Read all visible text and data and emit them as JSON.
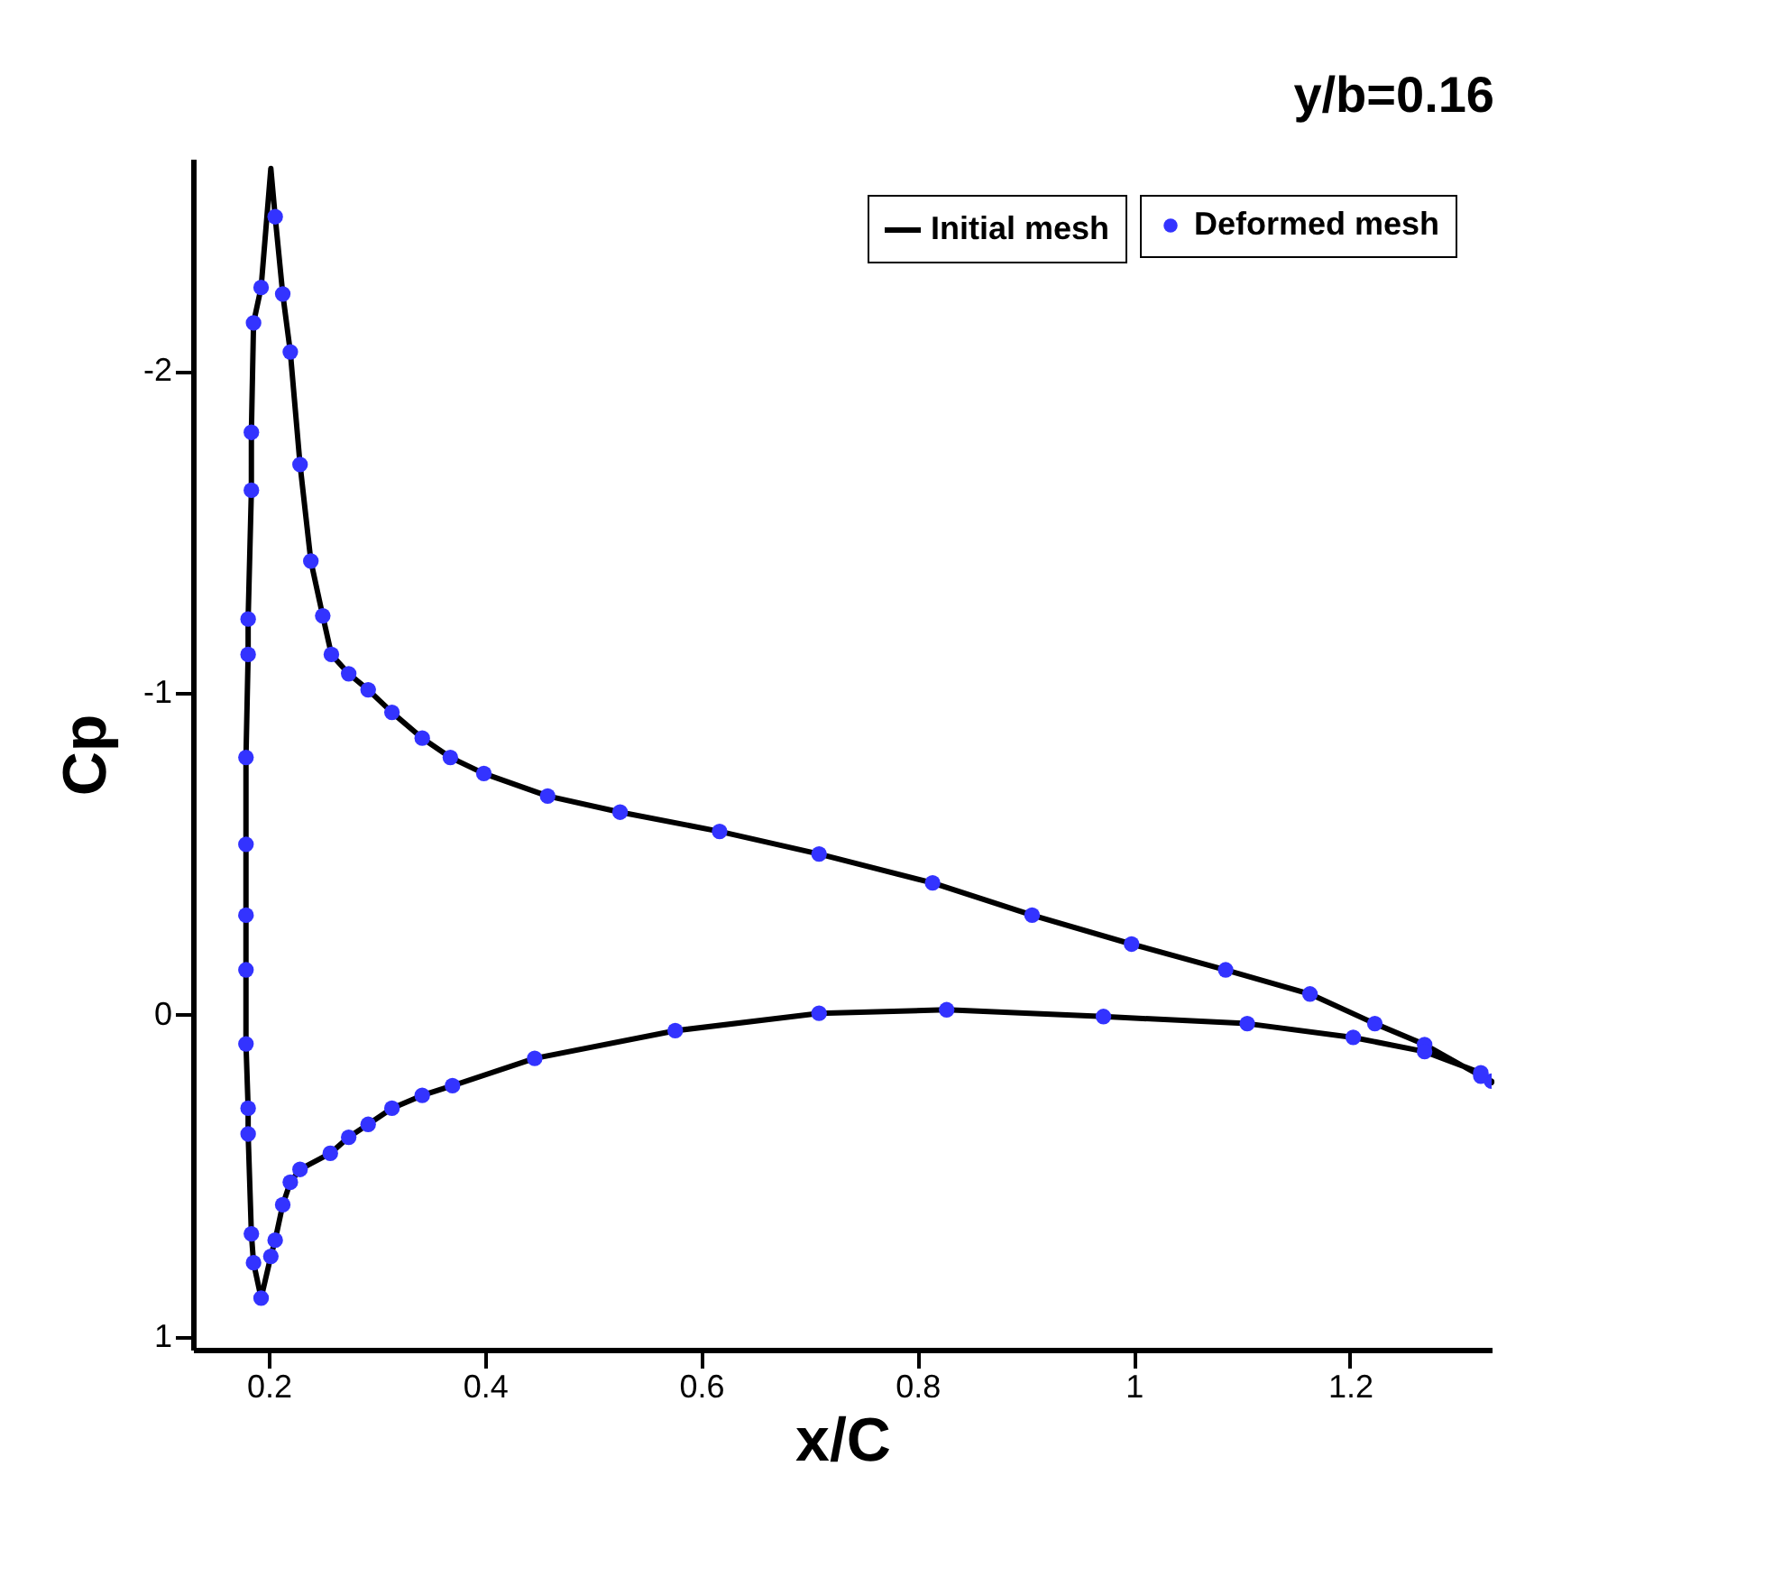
{
  "chart_data": {
    "type": "line",
    "title": "y/b=0.16",
    "xlabel": "x/C",
    "ylabel": "Cp",
    "x": [
      1.331,
      1.321,
      1.269,
      1.223,
      1.163,
      1.085,
      0.998,
      0.906,
      0.814,
      0.709,
      0.617,
      0.525,
      0.458,
      0.399,
      0.368,
      0.342,
      0.314,
      0.292,
      0.274,
      0.258,
      0.25,
      0.239,
      0.229,
      0.22,
      0.213,
      0.206,
      0.202,
      0.193,
      0.186,
      0.184,
      0.184,
      0.181,
      0.181,
      0.179,
      0.179,
      0.179,
      0.179,
      0.179,
      0.181,
      0.181,
      0.184,
      0.186,
      0.193,
      0.202,
      0.206,
      0.213,
      0.22,
      0.229,
      0.257,
      0.274,
      0.292,
      0.314,
      0.342,
      0.37,
      0.446,
      0.576,
      0.709,
      0.827,
      0.972,
      1.105,
      1.203,
      1.269,
      1.321,
      1.331
    ],
    "series": [
      {
        "name": "Initial mesh",
        "color": "#000000",
        "marker": "none",
        "line_style": "solid",
        "values": [
          0.206,
          0.19,
          0.092,
          0.027,
          -0.065,
          -0.14,
          -0.22,
          -0.31,
          -0.41,
          -0.5,
          -0.57,
          -0.63,
          -0.68,
          -0.75,
          -0.8,
          -0.86,
          -0.94,
          -1.01,
          -1.06,
          -1.12,
          -1.24,
          -1.41,
          -1.71,
          -2.06,
          -2.24,
          -2.48,
          -2.63,
          -2.26,
          -2.15,
          -1.81,
          -1.63,
          -1.23,
          -1.12,
          -0.8,
          -0.53,
          -0.31,
          -0.14,
          0.09,
          0.29,
          0.37,
          0.68,
          0.77,
          0.88,
          0.75,
          0.7,
          0.59,
          0.52,
          0.48,
          0.43,
          0.38,
          0.34,
          0.29,
          0.25,
          0.22,
          0.135,
          0.049,
          -0.005,
          -0.016,
          0.005,
          0.027,
          0.07,
          0.114,
          0.18,
          0.21
        ]
      },
      {
        "name": "Deformed mesh",
        "type": "scatter",
        "color": "#3333ff",
        "marker": "circle",
        "values": [
          0.206,
          0.19,
          0.092,
          0.027,
          -0.065,
          -0.14,
          -0.22,
          -0.31,
          -0.41,
          -0.5,
          -0.57,
          -0.63,
          -0.68,
          -0.75,
          -0.8,
          -0.86,
          -0.94,
          -1.01,
          -1.06,
          -1.12,
          -1.24,
          -1.41,
          -1.71,
          -2.06,
          -2.24,
          -2.48,
          null,
          -2.26,
          -2.15,
          -1.81,
          -1.63,
          -1.23,
          -1.12,
          -0.8,
          -0.53,
          -0.31,
          -0.14,
          0.09,
          0.29,
          0.37,
          0.68,
          0.77,
          0.88,
          0.75,
          0.7,
          0.59,
          0.52,
          0.48,
          0.43,
          0.38,
          0.34,
          0.29,
          0.25,
          0.22,
          0.135,
          0.049,
          -0.005,
          -0.016,
          0.005,
          0.027,
          0.07,
          0.114,
          0.18,
          null
        ]
      }
    ],
    "xlim": [
      0.13,
      1.331
    ],
    "xticks": [
      0.2,
      0.4,
      0.6,
      0.8,
      1,
      1.2
    ],
    "ylim": [
      1.04,
      -2.66
    ],
    "yticks": [
      -2,
      -1,
      0,
      1
    ],
    "grid": false,
    "legend": "top right"
  }
}
